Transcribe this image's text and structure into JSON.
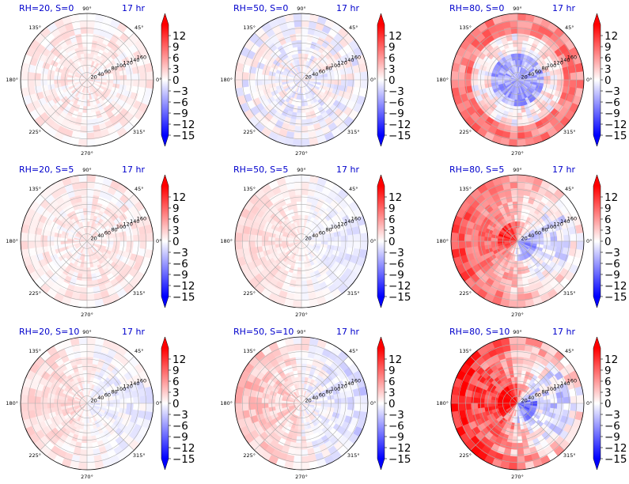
{
  "chart_data": {
    "type": "heatmap",
    "subtype": "polar",
    "time_label": "17 hr",
    "angle_ticks": [
      "0°",
      "45°",
      "90°",
      "135°",
      "180°",
      "225°",
      "270°",
      "315°"
    ],
    "radial_ticks": [
      20,
      40,
      60,
      80,
      100,
      120,
      140,
      160
    ],
    "colorbar": {
      "ticks": [
        12,
        9,
        6,
        3,
        0,
        -3,
        -6,
        -9,
        -12,
        -15
      ],
      "vmin": -15,
      "vmax": 15,
      "cmap": "bwr",
      "extend": "both"
    },
    "colors": {
      "positive": "#ff0000",
      "negative": "#0000ff",
      "neutral": "#ffffff",
      "title": "#0000cc"
    },
    "grid": true,
    "panels": [
      {
        "title": "RH=20, S=0",
        "pattern": "weak_noise",
        "amplitude": 2.5
      },
      {
        "title": "RH=50, S=0",
        "pattern": "weak_noise_blue",
        "amplitude": 3.0
      },
      {
        "title": "RH=80, S=0",
        "pattern": "ring_positive_center_negative",
        "amplitude": 9.0
      },
      {
        "title": "RH=20, S=5",
        "pattern": "weak_noise",
        "amplitude": 2.5
      },
      {
        "title": "RH=50, S=5",
        "pattern": "left_positive_right_negative",
        "amplitude": 3.5
      },
      {
        "title": "RH=80, S=5",
        "pattern": "left_positive_right_negative_strong",
        "amplitude": 9.0
      },
      {
        "title": "RH=20, S=10",
        "pattern": "left_positive_right_negative_weak",
        "amplitude": 3.0
      },
      {
        "title": "RH=50, S=10",
        "pattern": "left_positive_right_negative",
        "amplitude": 6.0
      },
      {
        "title": "RH=80, S=10",
        "pattern": "left_positive_right_negative_strong",
        "amplitude": 12.0
      }
    ]
  }
}
